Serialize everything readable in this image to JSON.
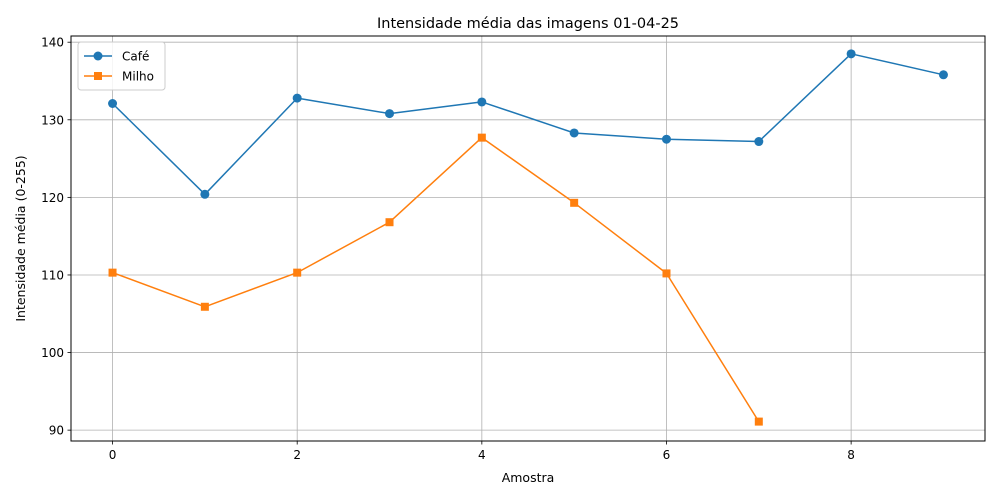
{
  "chart_data": {
    "type": "line",
    "title": "Intensidade média das imagens 01-04-25",
    "xlabel": "Amostra",
    "ylabel": "Intensidade média (0-255)",
    "xlim": [
      -0.45,
      9.45
    ],
    "ylim": [
      88.6,
      140.8
    ],
    "xticks": [
      0,
      2,
      4,
      6,
      8
    ],
    "yticks": [
      90,
      100,
      110,
      120,
      130,
      140
    ],
    "grid": true,
    "legend_position": "upper-left",
    "series": [
      {
        "name": "Café",
        "color": "#1f77b4",
        "marker": "circle",
        "x": [
          0,
          1,
          2,
          3,
          4,
          5,
          6,
          7,
          8,
          9
        ],
        "y": [
          132.1,
          120.4,
          132.8,
          130.8,
          132.3,
          128.3,
          127.5,
          127.2,
          138.5,
          135.8
        ]
      },
      {
        "name": "Milho",
        "color": "#ff7f0e",
        "marker": "square",
        "x": [
          0,
          1,
          2,
          3,
          4,
          5,
          6,
          7
        ],
        "y": [
          110.3,
          105.9,
          110.3,
          116.8,
          127.7,
          119.3,
          110.2,
          91.1
        ]
      }
    ]
  }
}
